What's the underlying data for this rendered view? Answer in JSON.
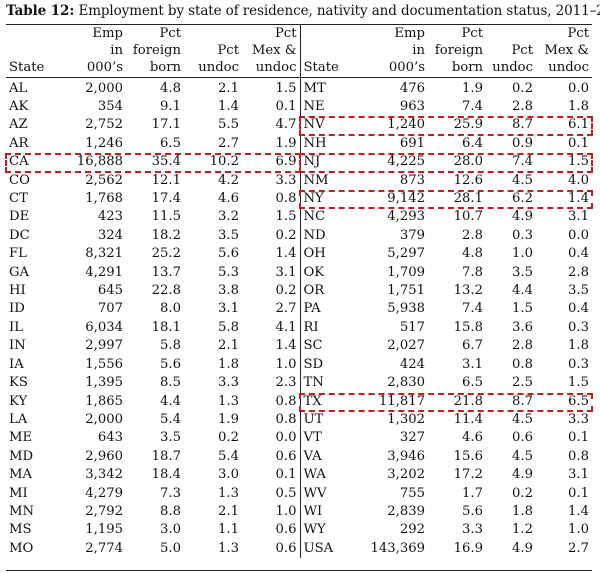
{
  "caption": {
    "label": "Table 12:",
    "text": "Employment by state of residence, nativity and documentation status, 2011–2013"
  },
  "header": {
    "row1": [
      "",
      "Emp",
      "Pct",
      "",
      "Pct"
    ],
    "row2": [
      "",
      "in",
      "foreign",
      "Pct",
      "Mex &"
    ],
    "row3": [
      "State",
      "000’s",
      "born",
      "undoc",
      "undoc"
    ]
  },
  "left_rows": [
    [
      "AL",
      "2,000",
      "4.8",
      "2.1",
      "1.5"
    ],
    [
      "AK",
      "354",
      "9.1",
      "1.4",
      "0.1"
    ],
    [
      "AZ",
      "2,752",
      "17.1",
      "5.5",
      "4.7"
    ],
    [
      "AR",
      "1,246",
      "6.5",
      "2.7",
      "1.9"
    ],
    [
      "CA",
      "16,888",
      "35.4",
      "10.2",
      "6.9"
    ],
    [
      "CO",
      "2,562",
      "12.1",
      "4.2",
      "3.3"
    ],
    [
      "CT",
      "1,768",
      "17.4",
      "4.6",
      "0.8"
    ],
    [
      "DE",
      "423",
      "11.5",
      "3.2",
      "1.5"
    ],
    [
      "DC",
      "324",
      "18.2",
      "3.5",
      "0.2"
    ],
    [
      "FL",
      "8,321",
      "25.2",
      "5.6",
      "1.4"
    ],
    [
      "GA",
      "4,291",
      "13.7",
      "5.3",
      "3.1"
    ],
    [
      "HI",
      "645",
      "22.8",
      "3.8",
      "0.2"
    ],
    [
      "ID",
      "707",
      "8.0",
      "3.1",
      "2.7"
    ],
    [
      "IL",
      "6,034",
      "18.1",
      "5.8",
      "4.1"
    ],
    [
      "IN",
      "2,997",
      "5.8",
      "2.1",
      "1.4"
    ],
    [
      "IA",
      "1,556",
      "5.6",
      "1.8",
      "1.0"
    ],
    [
      "KS",
      "1,395",
      "8.5",
      "3.3",
      "2.3"
    ],
    [
      "KY",
      "1,865",
      "4.4",
      "1.3",
      "0.8"
    ],
    [
      "LA",
      "2,000",
      "5.4",
      "1.9",
      "0.8"
    ],
    [
      "ME",
      "643",
      "3.5",
      "0.2",
      "0.0"
    ],
    [
      "MD",
      "2,960",
      "18.7",
      "5.4",
      "0.6"
    ],
    [
      "MA",
      "3,342",
      "18.4",
      "3.0",
      "0.1"
    ],
    [
      "MI",
      "4,279",
      "7.3",
      "1.3",
      "0.5"
    ],
    [
      "MN",
      "2,792",
      "8.8",
      "2.1",
      "1.0"
    ],
    [
      "MS",
      "1,195",
      "3.0",
      "1.1",
      "0.6"
    ],
    [
      "MO",
      "2,774",
      "5.0",
      "1.3",
      "0.6"
    ]
  ],
  "right_rows": [
    [
      "MT",
      "476",
      "1.9",
      "0.2",
      "0.0"
    ],
    [
      "NE",
      "963",
      "7.4",
      "2.8",
      "1.8"
    ],
    [
      "NV",
      "1,240",
      "25.9",
      "8.7",
      "6.1"
    ],
    [
      "NH",
      "691",
      "6.4",
      "0.9",
      "0.1"
    ],
    [
      "NJ",
      "4,225",
      "28.0",
      "7.4",
      "1.5"
    ],
    [
      "NM",
      "873",
      "12.6",
      "4.5",
      "4.0"
    ],
    [
      "NY",
      "9,142",
      "28.1",
      "6.2",
      "1.4"
    ],
    [
      "NC",
      "4,293",
      "10.7",
      "4.9",
      "3.1"
    ],
    [
      "ND",
      "379",
      "2.8",
      "0.3",
      "0.0"
    ],
    [
      "OH",
      "5,297",
      "4.8",
      "1.0",
      "0.4"
    ],
    [
      "OK",
      "1,709",
      "7.8",
      "3.5",
      "2.8"
    ],
    [
      "OR",
      "1,751",
      "13.2",
      "4.4",
      "3.5"
    ],
    [
      "PA",
      "5,938",
      "7.4",
      "1.5",
      "0.4"
    ],
    [
      "RI",
      "517",
      "15.8",
      "3.6",
      "0.3"
    ],
    [
      "SC",
      "2,027",
      "6.7",
      "2.8",
      "1.8"
    ],
    [
      "SD",
      "424",
      "3.1",
      "0.8",
      "0.3"
    ],
    [
      "TN",
      "2,830",
      "6.5",
      "2.5",
      "1.5"
    ],
    [
      "TX",
      "11,817",
      "21.8",
      "8.7",
      "6.5"
    ],
    [
      "UT",
      "1,302",
      "11.4",
      "4.5",
      "3.3"
    ],
    [
      "VT",
      "327",
      "4.6",
      "0.6",
      "0.1"
    ],
    [
      "VA",
      "3,946",
      "15.6",
      "4.5",
      "0.8"
    ],
    [
      "WA",
      "3,202",
      "17.2",
      "4.9",
      "3.1"
    ],
    [
      "WV",
      "755",
      "1.7",
      "0.2",
      "0.1"
    ],
    [
      "WI",
      "2,839",
      "5.6",
      "1.8",
      "1.4"
    ],
    [
      "WY",
      "292",
      "3.3",
      "1.2",
      "1.0"
    ],
    [
      "USA",
      "143,369",
      "16.9",
      "4.9",
      "2.7"
    ]
  ],
  "highlight_color": "#d0181b",
  "highlighted_states": [
    "CA",
    "NV",
    "NJ",
    "NY",
    "TX"
  ]
}
